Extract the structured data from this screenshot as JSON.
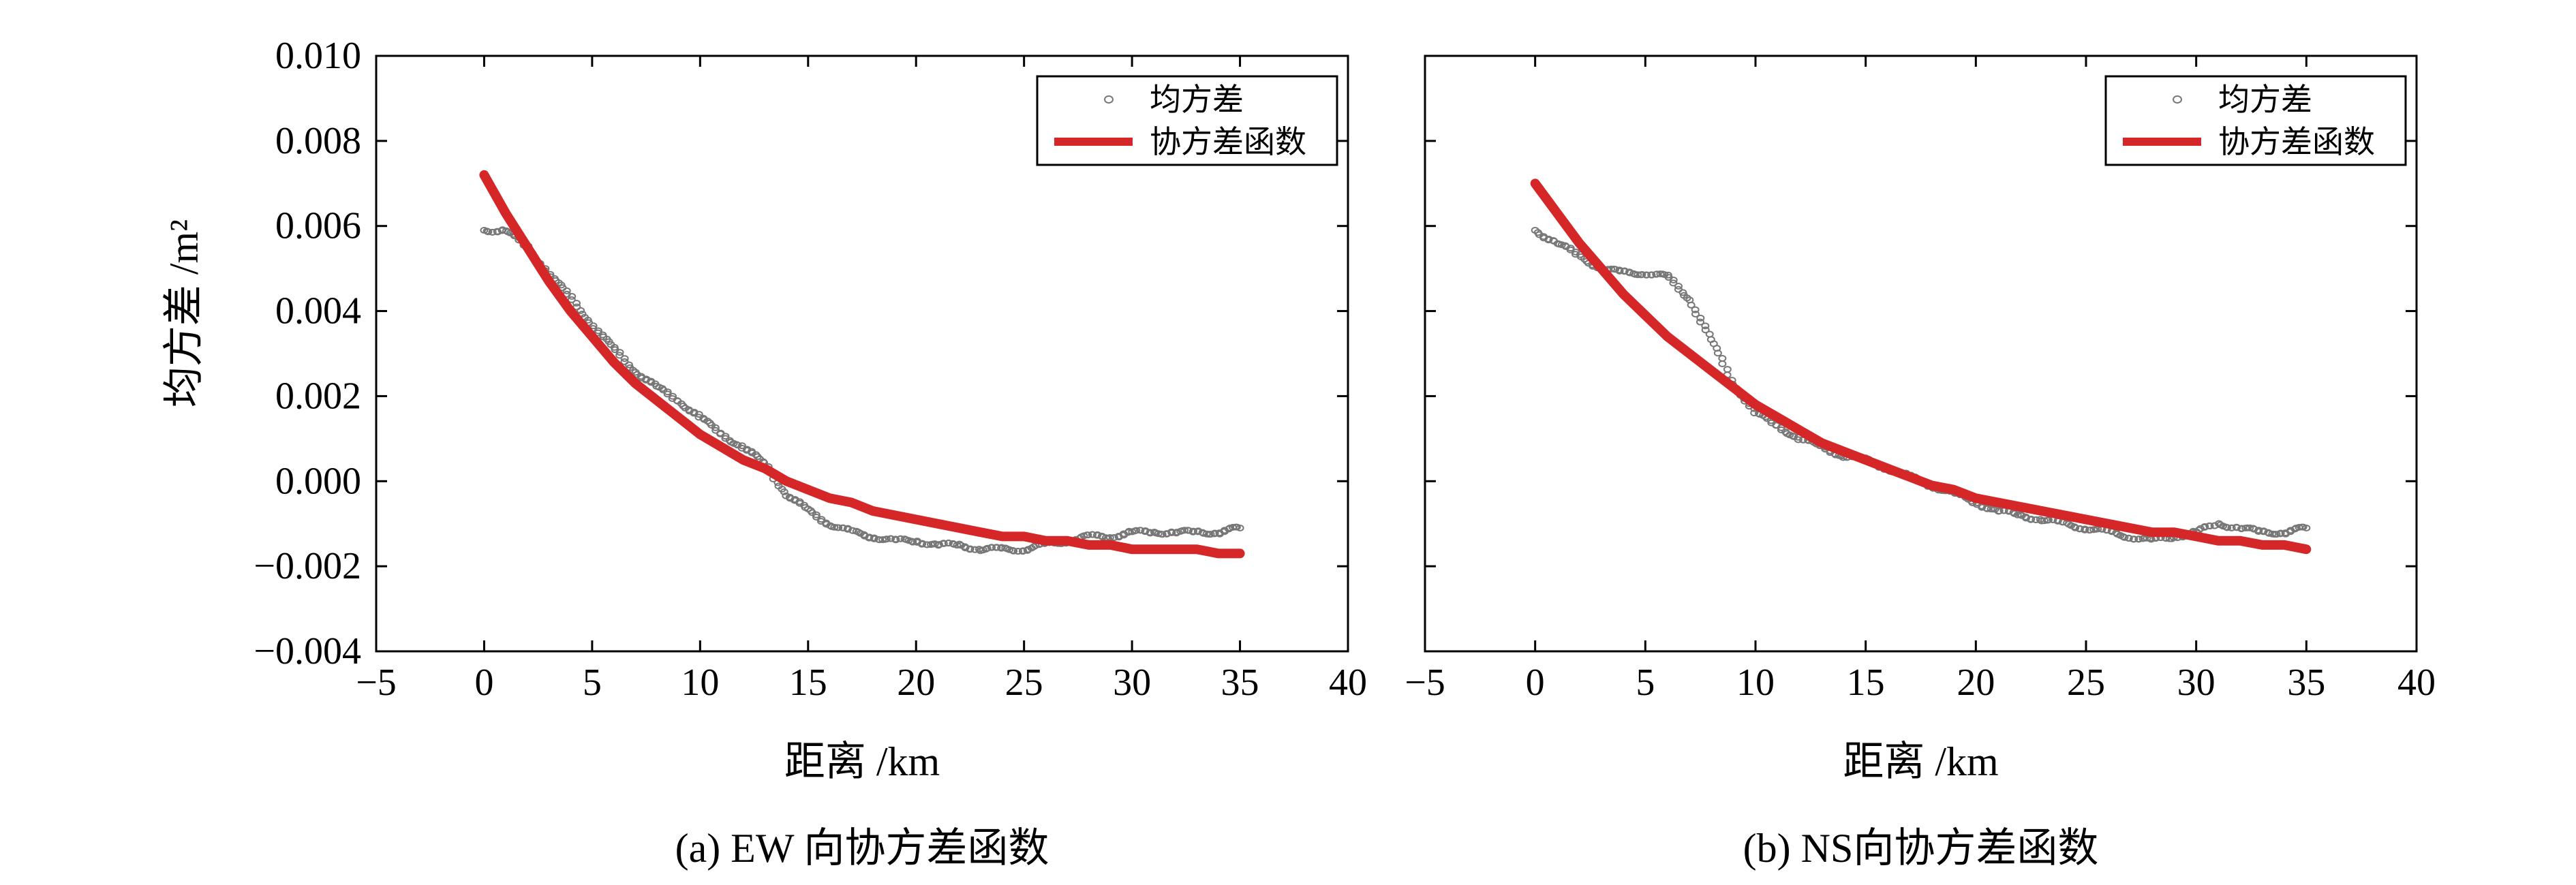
{
  "figure": {
    "ylabel": "均方差 /m²"
  },
  "chart_data": [
    {
      "type": "scatter",
      "caption": "(a) EW 向协方差函数",
      "xlabel": "距离 /km",
      "ylabel": "均方差 /m²",
      "xlim": [
        -5,
        40
      ],
      "ylim": [
        -0.004,
        0.01
      ],
      "xticks": [
        -5,
        0,
        5,
        10,
        15,
        20,
        25,
        30,
        35,
        40
      ],
      "yticks": [
        -0.004,
        -0.002,
        0.0,
        0.002,
        0.004,
        0.006,
        0.008,
        0.01
      ],
      "xtick_labels": [
        "−5",
        "0",
        "5",
        "10",
        "15",
        "20",
        "25",
        "30",
        "35",
        "40"
      ],
      "ytick_labels": [
        "−0.004",
        "−0.002",
        "0.000",
        "0.002",
        "0.004",
        "0.006",
        "0.008",
        "0.010"
      ],
      "legend_position": "top-right",
      "series": [
        {
          "name": "均方差",
          "style": "markers",
          "color": "#777777",
          "x": [
            0,
            1,
            2,
            3,
            4,
            5,
            6,
            7,
            8,
            9,
            10,
            11,
            12,
            13,
            14,
            15,
            16,
            17,
            18,
            19,
            20,
            21,
            22,
            23,
            24,
            25,
            26,
            27,
            28,
            29,
            30,
            31,
            32,
            33,
            34,
            35
          ],
          "y": [
            0.0059,
            0.0059,
            0.0055,
            0.0049,
            0.0043,
            0.0037,
            0.0031,
            0.0026,
            0.0022,
            0.0019,
            0.0015,
            0.0011,
            0.0008,
            0.0004,
            -0.0003,
            -0.0007,
            -0.001,
            -0.0012,
            -0.0013,
            -0.0014,
            -0.0014,
            -0.0015,
            -0.0015,
            -0.0016,
            -0.0016,
            -0.0016,
            -0.0015,
            -0.0014,
            -0.0013,
            -0.0013,
            -0.0012,
            -0.0012,
            -0.0012,
            -0.0012,
            -0.0012,
            -0.0011
          ]
        },
        {
          "name": "协方差函数",
          "style": "line",
          "color": "#d62728",
          "x": [
            0,
            1,
            2,
            3,
            4,
            5,
            6,
            7,
            8,
            9,
            10,
            11,
            12,
            13,
            14,
            15,
            16,
            17,
            18,
            19,
            20,
            21,
            22,
            23,
            24,
            25,
            26,
            27,
            28,
            29,
            30,
            31,
            32,
            33,
            34,
            35
          ],
          "y": [
            0.0072,
            0.0063,
            0.0055,
            0.0047,
            0.004,
            0.0034,
            0.0028,
            0.0023,
            0.0019,
            0.0015,
            0.0011,
            0.0008,
            0.0005,
            0.0003,
            0.0,
            -0.0002,
            -0.0004,
            -0.0005,
            -0.0007,
            -0.0008,
            -0.0009,
            -0.001,
            -0.0011,
            -0.0012,
            -0.0013,
            -0.0013,
            -0.0014,
            -0.0014,
            -0.0015,
            -0.0015,
            -0.0016,
            -0.0016,
            -0.0016,
            -0.0016,
            -0.0017,
            -0.0017
          ]
        }
      ]
    },
    {
      "type": "scatter",
      "caption": "(b) NS向协方差函数",
      "xlabel": "距离 /km",
      "ylabel": "",
      "xlim": [
        -5,
        40
      ],
      "ylim": [
        -0.004,
        0.01
      ],
      "xticks": [
        -5,
        0,
        5,
        10,
        15,
        20,
        25,
        30,
        35,
        40
      ],
      "yticks": [
        -0.004,
        -0.002,
        0.0,
        0.002,
        0.004,
        0.006,
        0.008,
        0.01
      ],
      "xtick_labels": [
        "−5",
        "0",
        "5",
        "10",
        "15",
        "20",
        "25",
        "30",
        "35",
        "40"
      ],
      "ytick_labels": [],
      "legend_position": "top-right",
      "series": [
        {
          "name": "均方差",
          "style": "markers",
          "color": "#777777",
          "x": [
            0,
            1,
            2,
            3,
            4,
            5,
            6,
            7,
            8,
            9,
            10,
            11,
            12,
            13,
            14,
            15,
            16,
            17,
            18,
            19,
            20,
            21,
            22,
            23,
            24,
            25,
            26,
            27,
            28,
            29,
            30,
            31,
            32,
            33,
            34,
            35
          ],
          "y": [
            0.0059,
            0.0056,
            0.0053,
            0.005,
            0.0049,
            0.0049,
            0.0048,
            0.0043,
            0.0033,
            0.0023,
            0.0016,
            0.0013,
            0.001,
            0.0008,
            0.0006,
            0.0005,
            0.0003,
            0.0001,
            -0.0001,
            -0.0003,
            -0.0005,
            -0.0007,
            -0.0008,
            -0.0009,
            -0.001,
            -0.0011,
            -0.0012,
            -0.0013,
            -0.0014,
            -0.0013,
            -0.0012,
            -0.001,
            -0.0011,
            -0.0012,
            -0.0012,
            -0.0011
          ]
        },
        {
          "name": "协方差函数",
          "style": "line",
          "color": "#d62728",
          "x": [
            0,
            1,
            2,
            3,
            4,
            5,
            6,
            7,
            8,
            9,
            10,
            11,
            12,
            13,
            14,
            15,
            16,
            17,
            18,
            19,
            20,
            21,
            22,
            23,
            24,
            25,
            26,
            27,
            28,
            29,
            30,
            31,
            32,
            33,
            34,
            35
          ],
          "y": [
            0.007,
            0.0063,
            0.0056,
            0.005,
            0.0044,
            0.0039,
            0.0034,
            0.003,
            0.0026,
            0.0022,
            0.0018,
            0.0015,
            0.0012,
            0.0009,
            0.0007,
            0.0005,
            0.0003,
            0.0001,
            -0.0001,
            -0.0002,
            -0.0004,
            -0.0005,
            -0.0006,
            -0.0007,
            -0.0008,
            -0.0009,
            -0.001,
            -0.0011,
            -0.0012,
            -0.0012,
            -0.0013,
            -0.0014,
            -0.0014,
            -0.0015,
            -0.0015,
            -0.0016
          ]
        }
      ]
    }
  ]
}
